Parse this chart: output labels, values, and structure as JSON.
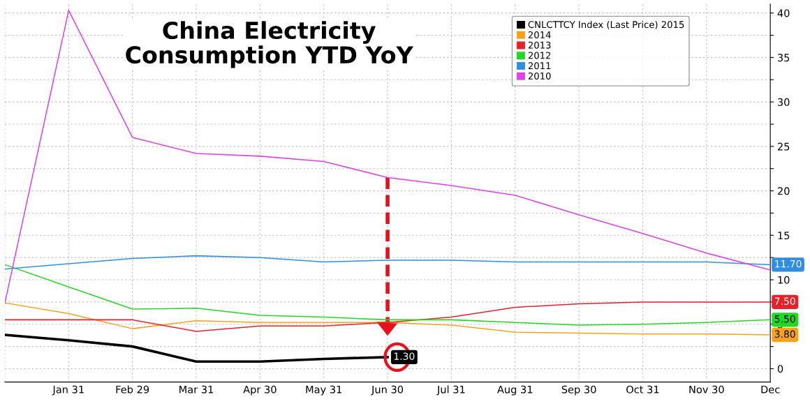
{
  "chart_data": {
    "type": "line",
    "title": "China Electricity\nConsumption YTD YoY",
    "categories": [
      null,
      "Jan 31",
      "Feb 29",
      "Mar 31",
      "Apr 30",
      "May 31",
      "Jun 30",
      "Jul 31",
      "Aug 31",
      "Sep 30",
      "Oct 31",
      "Nov 30",
      "Dec"
    ],
    "series": [
      {
        "name": "CNLCTTCY Index (Last Price) 2015",
        "color": "#000000",
        "values": [
          3.8,
          3.2,
          2.5,
          0.8,
          0.8,
          1.1,
          1.3,
          null,
          null,
          null,
          null,
          null,
          null
        ],
        "value_labels": [
          null,
          null,
          null,
          null,
          null,
          null,
          "1.30",
          null,
          null,
          null,
          null,
          null,
          null
        ]
      },
      {
        "name": "2014",
        "color": "#f7a21b",
        "values": [
          7.4,
          6.2,
          4.5,
          5.4,
          5.2,
          5.2,
          5.2,
          4.9,
          4.1,
          4.0,
          3.9,
          3.9,
          3.8
        ],
        "value_labels": [
          null,
          null,
          null,
          null,
          null,
          null,
          null,
          null,
          null,
          null,
          null,
          null,
          "3.80"
        ]
      },
      {
        "name": "2013",
        "color": "#e8202a",
        "values": [
          5.5,
          5.5,
          5.5,
          4.2,
          4.8,
          4.8,
          5.2,
          5.8,
          6.9,
          7.3,
          7.5,
          7.5,
          7.5
        ],
        "value_labels": [
          null,
          null,
          null,
          null,
          null,
          null,
          null,
          null,
          null,
          null,
          null,
          null,
          "7.50"
        ]
      },
      {
        "name": "2012",
        "color": "#22d822",
        "values": [
          11.7,
          9.2,
          6.7,
          6.8,
          6.0,
          5.8,
          5.5,
          5.5,
          5.2,
          4.9,
          5.0,
          5.2,
          5.5
        ],
        "value_labels": [
          null,
          null,
          null,
          null,
          null,
          null,
          null,
          null,
          null,
          null,
          null,
          null,
          "5.50"
        ]
      },
      {
        "name": "2011",
        "color": "#2f8de4",
        "values": [
          11.2,
          11.8,
          12.4,
          12.7,
          12.5,
          12.0,
          12.2,
          12.2,
          12.0,
          12.0,
          12.0,
          12.0,
          11.7
        ],
        "value_labels": [
          null,
          null,
          null,
          null,
          null,
          null,
          null,
          null,
          null,
          null,
          null,
          null,
          "11.70"
        ]
      },
      {
        "name": "2010",
        "color": "#e040e8",
        "values": [
          7.4,
          40.3,
          26.0,
          24.2,
          23.9,
          23.3,
          21.5,
          20.6,
          19.5,
          17.3,
          15.2,
          13.0,
          11.1
        ]
      }
    ],
    "ylim": [
      -1.5,
      41
    ],
    "yticks": [
      0,
      {
        "value": 2.5,
        "label": null
      },
      5,
      {
        "value": 7.5,
        "label": null
      },
      10,
      {
        "value": 12.5,
        "label": null
      },
      15,
      {
        "value": 17.5,
        "label": null
      },
      20,
      {
        "value": 22.5,
        "label": null
      },
      25,
      {
        "value": 27.5,
        "label": null
      },
      30,
      {
        "value": 32.5,
        "label": null
      },
      35,
      {
        "value": 37.5,
        "label": null
      },
      40
    ],
    "grid": true,
    "legend": "top right",
    "line_style": "solid",
    "marker": "none"
  }
}
